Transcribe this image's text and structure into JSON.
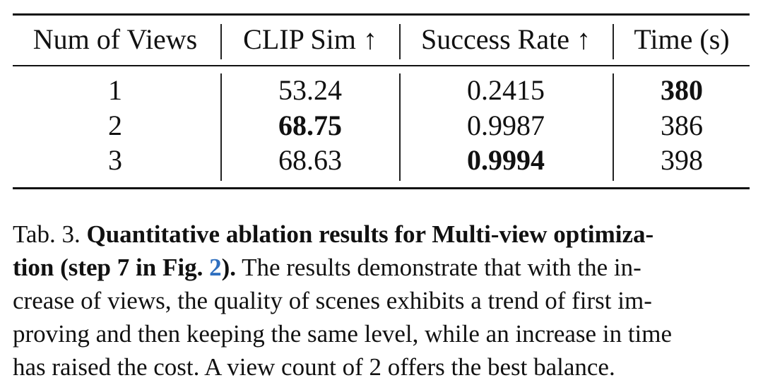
{
  "table": {
    "headers": [
      "Num of Views",
      "CLIP Sim ↑",
      "Success Rate ↑",
      "Time (s)"
    ],
    "rows": [
      [
        "1",
        "53.24",
        "0.2415",
        "380"
      ],
      [
        "2",
        "68.75",
        "0.9987",
        "386"
      ],
      [
        "3",
        "68.63",
        "0.9994",
        "398"
      ]
    ],
    "bold_cells": [
      [
        0,
        3
      ],
      [
        1,
        1
      ],
      [
        2,
        2
      ]
    ]
  },
  "caption": {
    "label": "Tab. 3.",
    "bold_line1": "Quantitative ablation results for Multi-view optimiza-",
    "bold_line2_a": "tion (step 7 in Fig.",
    "fig_ref": "2",
    "bold_line2_b": ").",
    "line2_rest": "The results demonstrate that with the in-",
    "line3": "crease of views, the quality of scenes exhibits a trend of first im-",
    "line4": "proving and then keeping the same level, while an increase in time",
    "line5": "has raised the cost. A view count of 2 offers the best balance."
  }
}
